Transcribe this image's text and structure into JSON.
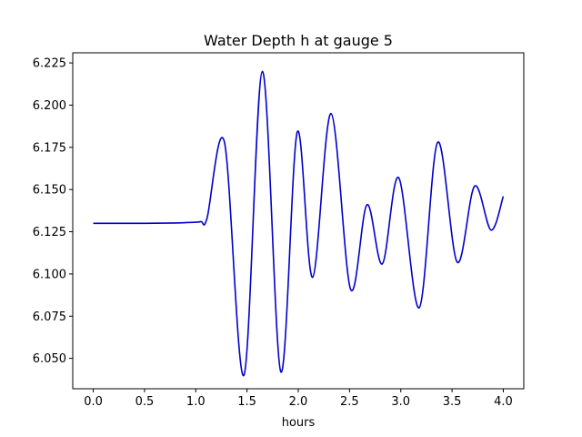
{
  "chart_data": {
    "type": "line",
    "title": "Water Depth h at gauge 5",
    "xlabel": "hours",
    "ylabel": "",
    "xlim": [
      -0.2,
      4.2
    ],
    "ylim": [
      6.032,
      6.231
    ],
    "xticks": [
      0.0,
      0.5,
      1.0,
      1.5,
      2.0,
      2.5,
      3.0,
      3.5,
      4.0
    ],
    "xtick_labels": [
      "0.0",
      "0.5",
      "1.0",
      "1.5",
      "2.0",
      "2.5",
      "3.0",
      "3.5",
      "4.0"
    ],
    "yticks": [
      6.05,
      6.075,
      6.1,
      6.125,
      6.15,
      6.175,
      6.2,
      6.225
    ],
    "ytick_labels": [
      "6.050",
      "6.075",
      "6.100",
      "6.125",
      "6.150",
      "6.175",
      "6.200",
      "6.225"
    ],
    "grid": false,
    "series": [
      {
        "color": "#0000cc",
        "x": [
          0.0,
          0.5,
          0.8,
          0.95,
          1.05,
          1.11,
          1.28,
          1.47,
          1.65,
          1.83,
          1.99,
          2.14,
          2.32,
          2.51,
          2.67,
          2.82,
          2.98,
          3.18,
          3.36,
          3.55,
          3.72,
          3.88,
          4.0
        ],
        "y": [
          6.13,
          6.13,
          6.1302,
          6.1305,
          6.131,
          6.133,
          6.178,
          6.04,
          6.22,
          6.042,
          6.184,
          6.098,
          6.195,
          6.091,
          6.141,
          6.106,
          6.157,
          6.08,
          6.178,
          6.107,
          6.152,
          6.126,
          6.146
        ]
      }
    ]
  }
}
